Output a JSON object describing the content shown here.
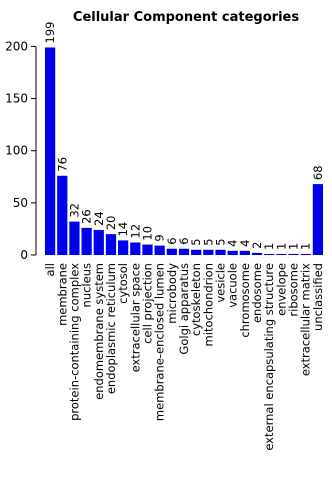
{
  "chart_data": {
    "type": "bar",
    "title": "Cellular Component categories",
    "xlabel": "",
    "ylabel": "",
    "ylim": [
      0,
      210
    ],
    "yticks": [
      0,
      50,
      100,
      150,
      200
    ],
    "grid": false,
    "categories": [
      "all",
      "membrane",
      "protein-containing complex",
      "nucleus",
      "endomembrane system",
      "endoplasmic reticulum",
      "cytosol",
      "extracellular space",
      "cell projection",
      "membrane-enclosed lumen",
      "microbody",
      "Golgi apparatus",
      "cytoskeleton",
      "mitochondrion",
      "vesicle",
      "vacuole",
      "chromosome",
      "endosome",
      "external encapsulating structure",
      "envelope",
      "ribosome",
      "extracellular matrix",
      "unclassified"
    ],
    "values": [
      199,
      76,
      32,
      26,
      24,
      20,
      14,
      12,
      10,
      9,
      6,
      6,
      5,
      5,
      5,
      4,
      4,
      2,
      1,
      1,
      1,
      1,
      68
    ],
    "bar_color": "#0000ee",
    "axis_color": "#000000"
  }
}
